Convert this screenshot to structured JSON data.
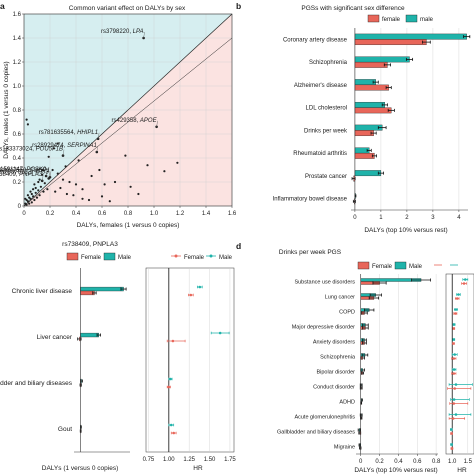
{
  "colors": {
    "female": "#e8665a",
    "male": "#1fb3aa",
    "bar_outline": "#222222",
    "region_upper": "#d6eef0",
    "region_lower": "#fbe3e1"
  },
  "panels": {
    "a": {
      "letter": "a"
    },
    "b": {
      "letter": "b"
    },
    "c": {
      "letter": "c"
    },
    "d": {
      "letter": "d"
    }
  },
  "chart_data": [
    {
      "id": "a",
      "type": "scatter",
      "title": "Common variant effect on DALYs by sex",
      "xlabel": "DALYs, females (1 versus 0 copies)",
      "ylabel": "DALYs, males (1 versus 0 copies)",
      "xlim": [
        0,
        1.6
      ],
      "ylim": [
        0,
        1.6
      ],
      "xticks": [
        "0",
        "0.2",
        "0.4",
        "0.6",
        "0.8",
        "1.0",
        "1.2",
        "1.4",
        "1.6"
      ],
      "yticks": [
        "0",
        "0.2",
        "0.4",
        "0.6",
        "0.8",
        "1.0",
        "1.2",
        "1.4",
        "1.6"
      ],
      "labeled_points": [
        {
          "label": "rs3798220, LPA",
          "x": 0.92,
          "y": 1.4
        },
        {
          "label": "rs183373024, POU5F1B",
          "x": 0.3,
          "y": 0.42
        },
        {
          "label": "rs781635564, HHIPL1",
          "x": 0.57,
          "y": 0.56
        },
        {
          "label": "rs11591147, PCSK9",
          "x": 0.17,
          "y": 0.25
        },
        {
          "label": "rs28929474, SERPINA1",
          "x": 0.56,
          "y": 0.45
        },
        {
          "label": "rs188247550, SUGP1",
          "x": 0.2,
          "y": 0.24
        },
        {
          "label": "rs78378222, TP53",
          "x": 0.19,
          "y": 0.23
        },
        {
          "label": "rs738409, PNPLA3",
          "x": 0.14,
          "y": 0.21
        },
        {
          "label": "rs429358, APOE",
          "x": 1.02,
          "y": 0.66
        }
      ],
      "cluster_points": [
        {
          "x": 0.01,
          "y": 0.02
        },
        {
          "x": 0.02,
          "y": 0.01
        },
        {
          "x": 0.03,
          "y": 0.04
        },
        {
          "x": 0.04,
          "y": 0.02
        },
        {
          "x": 0.05,
          "y": 0.06
        },
        {
          "x": 0.06,
          "y": 0.03
        },
        {
          "x": 0.07,
          "y": 0.08
        },
        {
          "x": 0.08,
          "y": 0.05
        },
        {
          "x": 0.09,
          "y": 0.11
        },
        {
          "x": 0.1,
          "y": 0.07
        },
        {
          "x": 0.11,
          "y": 0.13
        },
        {
          "x": 0.12,
          "y": 0.09
        },
        {
          "x": 0.13,
          "y": 0.16
        },
        {
          "x": 0.15,
          "y": 0.12
        },
        {
          "x": 0.16,
          "y": 0.19
        },
        {
          "x": 0.18,
          "y": 0.14
        },
        {
          "x": 0.02,
          "y": 0.05
        },
        {
          "x": 0.04,
          "y": 0.07
        },
        {
          "x": 0.06,
          "y": 0.1
        },
        {
          "x": 0.09,
          "y": 0.15
        },
        {
          "x": 0.03,
          "y": 0.09
        },
        {
          "x": 0.01,
          "y": 0.06
        },
        {
          "x": 0.05,
          "y": 0.12
        },
        {
          "x": 0.07,
          "y": 0.14
        },
        {
          "x": 0.08,
          "y": 0.18
        },
        {
          "x": 0.11,
          "y": 0.2
        },
        {
          "x": 0.12,
          "y": 0.22
        },
        {
          "x": 0.14,
          "y": 0.26
        },
        {
          "x": 0.22,
          "y": 0.3
        },
        {
          "x": 0.26,
          "y": 0.27
        },
        {
          "x": 0.3,
          "y": 0.22
        },
        {
          "x": 0.24,
          "y": 0.12
        },
        {
          "x": 0.28,
          "y": 0.15
        },
        {
          "x": 0.35,
          "y": 0.2
        },
        {
          "x": 0.4,
          "y": 0.18
        },
        {
          "x": 0.33,
          "y": 0.1
        },
        {
          "x": 0.38,
          "y": 0.09
        },
        {
          "x": 0.45,
          "y": 0.14
        },
        {
          "x": 0.52,
          "y": 0.25
        },
        {
          "x": 0.58,
          "y": 0.3
        },
        {
          "x": 0.62,
          "y": 0.18
        },
        {
          "x": 0.7,
          "y": 0.2
        },
        {
          "x": 0.78,
          "y": 0.42
        },
        {
          "x": 0.82,
          "y": 0.16
        },
        {
          "x": 0.88,
          "y": 0.1
        },
        {
          "x": 0.95,
          "y": 0.34
        },
        {
          "x": 1.08,
          "y": 0.29
        },
        {
          "x": 1.18,
          "y": 0.36
        },
        {
          "x": 0.02,
          "y": 0.72
        },
        {
          "x": 0.03,
          "y": 0.68
        },
        {
          "x": 0.45,
          "y": 0.06
        },
        {
          "x": 0.5,
          "y": 0.05
        },
        {
          "x": 0.6,
          "y": 0.08
        },
        {
          "x": 0.66,
          "y": 0.04
        },
        {
          "x": 0.19,
          "y": 0.41
        },
        {
          "x": 0.23,
          "y": 0.48
        },
        {
          "x": 0.26,
          "y": 0.52
        },
        {
          "x": 0.14,
          "y": 0.3
        },
        {
          "x": 0.32,
          "y": 0.33
        },
        {
          "x": 0.42,
          "y": 0.38
        }
      ]
    },
    {
      "id": "b",
      "type": "bar",
      "title": "PGSs with significant sex difference",
      "xlabel": "DALYs (top 10% versus rest)",
      "xlim": [
        0,
        4.3
      ],
      "xticks": [
        "0",
        "1",
        "2",
        "3",
        "4"
      ],
      "legend": [
        "female",
        "male"
      ],
      "categories": [
        "Coronary artery disease",
        "Schizophrenia",
        "Alzheimer's disease",
        "LDL cholesterol",
        "Drinks per week",
        "Rheumatoid arthritis",
        "Prostate cancer",
        "Inflammatory bowel disease"
      ],
      "series": [
        {
          "name": "male",
          "values": [
            4.3,
            2.1,
            0.8,
            1.15,
            1.05,
            0.55,
            1.0,
            0.02
          ],
          "err": [
            0.12,
            0.12,
            0.1,
            0.1,
            0.15,
            0.08,
            0.1,
            0.02
          ]
        },
        {
          "name": "female",
          "values": [
            2.75,
            1.25,
            1.3,
            1.4,
            0.72,
            0.75,
            -0.05,
            -0.02
          ],
          "err": [
            0.15,
            0.12,
            0.1,
            0.12,
            0.1,
            0.08,
            0.06,
            0.04
          ]
        }
      ]
    },
    {
      "id": "c",
      "type": "bar",
      "title": "rs738409, PNPLA3",
      "xlabel": "DALYs (1 versus 0 copies)",
      "legend": [
        "Female",
        "Male"
      ],
      "categories": [
        "Chronic liver disease",
        "Liver cancer",
        "Gallbladder and biliary diseases",
        "Gout"
      ],
      "series": [
        {
          "name": "Male",
          "values": [
            0.2,
            0.085,
            0.005,
            0.002
          ],
          "err": [
            0.012,
            0.008,
            0.004,
            0.002
          ]
        },
        {
          "name": "Female",
          "values": [
            0.065,
            -0.005,
            0.001,
            0.001
          ],
          "err": [
            0.008,
            0.008,
            0.003,
            0.002
          ]
        }
      ],
      "hr": {
        "xlabel": "HR",
        "xlim": [
          0.72,
          1.8
        ],
        "xticks": [
          "0.75",
          "1.00",
          "1.25",
          "1.50",
          "1.75"
        ],
        "legend": [
          "Female",
          "Male"
        ],
        "series": [
          {
            "name": "Female",
            "values": [
              1.27,
              1.05,
              1.0,
              1.06
            ],
            "lo": [
              1.24,
              0.98,
              0.98,
              1.03
            ],
            "hi": [
              1.3,
              1.2,
              1.02,
              1.09
            ]
          },
          {
            "name": "Male",
            "values": [
              1.38,
              1.63,
              1.02,
              1.03
            ],
            "lo": [
              1.35,
              1.52,
              1.0,
              1.0
            ],
            "hi": [
              1.41,
              1.74,
              1.04,
              1.06
            ]
          }
        ]
      }
    },
    {
      "id": "d",
      "type": "bar",
      "title": "Drinks per week PGS",
      "xlabel": "DALYs (top 10% versus rest)",
      "xlim": [
        0,
        0.8
      ],
      "xticks": [
        "0",
        "0.2",
        "0.4",
        "0.6",
        "0.8"
      ],
      "legend": [
        "Female",
        "Male"
      ],
      "categories": [
        "Substance use disorders",
        "Lung cancer",
        "COPD",
        "Major depressive disorder",
        "Anxiety disorders",
        "Schizophrenia",
        "Bipolar disorder",
        "Conduct disorder",
        "ADHD",
        "Acute glomerulonephritis",
        "Gallbladder and biliary diseases",
        "Migraine"
      ],
      "series": [
        {
          "name": "Male",
          "values": [
            0.64,
            0.16,
            0.09,
            0.05,
            0.04,
            0.045,
            0.02,
            0.005,
            0.01,
            0.005,
            -0.015,
            -0.01
          ],
          "err": [
            0.1,
            0.06,
            0.05,
            0.03,
            0.02,
            0.03,
            0.02,
            0.01,
            0.008,
            0.01,
            0.012,
            0.008
          ]
        },
        {
          "name": "Female",
          "values": [
            0.2,
            0.14,
            0.04,
            0.05,
            0.04,
            0.02,
            0.02,
            0.005,
            0.005,
            0.005,
            -0.01,
            -0.005
          ],
          "err": [
            0.07,
            0.05,
            0.03,
            0.03,
            0.02,
            0.02,
            0.01,
            0.01,
            0.005,
            0.008,
            0.01,
            0.008
          ]
        }
      ],
      "hr": {
        "xlabel": "HR",
        "xticks": [
          "1.0",
          "1.5"
        ],
        "xlim": [
          0.8,
          1.7
        ],
        "series": [
          {
            "name": "Female",
            "values": [
              1.38,
              1.16,
              1.1,
              1.05,
              1.04,
              1.05,
              1.05,
              1.08,
              1.05,
              1.03,
              0.98,
              0.99
            ],
            "lo": [
              1.3,
              1.1,
              1.05,
              1.02,
              1.01,
              0.98,
              0.98,
              0.85,
              0.92,
              0.9,
              0.95,
              0.96
            ],
            "hi": [
              1.46,
              1.22,
              1.15,
              1.08,
              1.07,
              1.12,
              1.12,
              1.6,
              1.5,
              1.4,
              1.01,
              1.02
            ]
          },
          {
            "name": "Male",
            "values": [
              1.42,
              1.2,
              1.12,
              1.06,
              1.05,
              1.08,
              1.06,
              1.12,
              1.06,
              1.12,
              0.97,
              0.98
            ],
            "lo": [
              1.34,
              1.14,
              1.07,
              1.03,
              1.02,
              1.0,
              1.0,
              0.9,
              0.95,
              0.9,
              0.94,
              0.95
            ],
            "hi": [
              1.5,
              1.26,
              1.17,
              1.09,
              1.08,
              1.16,
              1.12,
              1.65,
              1.55,
              1.6,
              1.0,
              1.01
            ]
          }
        ]
      }
    }
  ]
}
